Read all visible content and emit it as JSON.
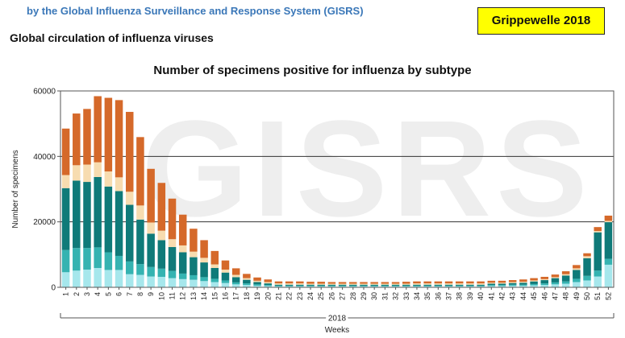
{
  "header": {
    "subtitle": "by the Global Influenza Surveillance and Response System (GISRS)",
    "badge": "Grippewelle 2018",
    "section_title": "Global circulation of influenza viruses",
    "watermark": "GISRS"
  },
  "colors": {
    "segments": [
      "#a6e7ec",
      "#35b3b1",
      "#0f7a79",
      "#f7dcb0",
      "#d5692a"
    ],
    "grid": "#333333",
    "plot_border": "#555555"
  },
  "chart_data": {
    "type": "bar",
    "stacked": true,
    "title": "Number of specimens positive for influenza by subtype",
    "xlabel": "Weeks",
    "year_label": "2018",
    "ylabel": "Number of specimens",
    "ylim": [
      0,
      60000
    ],
    "yticks": [
      0,
      20000,
      40000,
      60000
    ],
    "grid": true,
    "categories": [
      "1",
      "2",
      "3",
      "4",
      "5",
      "6",
      "7",
      "8",
      "9",
      "10",
      "11",
      "12",
      "13",
      "14",
      "15",
      "16",
      "17",
      "18",
      "19",
      "20",
      "21",
      "22",
      "23",
      "24",
      "25",
      "26",
      "27",
      "28",
      "29",
      "30",
      "31",
      "32",
      "33",
      "34",
      "35",
      "36",
      "37",
      "38",
      "39",
      "40",
      "41",
      "42",
      "43",
      "44",
      "45",
      "46",
      "47",
      "48",
      "49",
      "50",
      "51",
      "52"
    ],
    "series": [
      {
        "values": [
          4600,
          5100,
          5400,
          5900,
          5300,
          5300,
          4000,
          3800,
          3300,
          3200,
          2800,
          2500,
          2300,
          1900,
          1600,
          1300,
          900,
          700,
          500,
          400,
          300,
          300,
          300,
          300,
          300,
          300,
          300,
          300,
          300,
          300,
          300,
          300,
          300,
          300,
          300,
          300,
          300,
          300,
          300,
          300,
          400,
          400,
          500,
          500,
          600,
          700,
          900,
          1100,
          1600,
          2100,
          3300,
          6900
        ]
      },
      {
        "values": [
          6800,
          6900,
          6600,
          6300,
          5400,
          4300,
          3900,
          3300,
          2900,
          2500,
          2200,
          1700,
          1400,
          1200,
          1000,
          800,
          600,
          500,
          400,
          300,
          200,
          200,
          200,
          200,
          200,
          200,
          200,
          200,
          200,
          200,
          200,
          200,
          200,
          200,
          200,
          200,
          200,
          200,
          200,
          200,
          300,
          300,
          300,
          300,
          400,
          500,
          600,
          700,
          1000,
          1400,
          1800,
          1800
        ]
      },
      {
        "values": [
          18900,
          20600,
          20200,
          21500,
          20100,
          19800,
          17300,
          13600,
          10200,
          8700,
          7300,
          6500,
          5500,
          4500,
          3300,
          2400,
          1600,
          1100,
          700,
          500,
          300,
          300,
          300,
          300,
          300,
          300,
          300,
          300,
          300,
          300,
          300,
          300,
          300,
          300,
          300,
          300,
          300,
          300,
          300,
          300,
          400,
          400,
          500,
          600,
          800,
          1000,
          1300,
          1800,
          2700,
          5400,
          11700,
          11200
        ]
      },
      {
        "values": [
          4000,
          4700,
          5300,
          4500,
          4600,
          4200,
          4000,
          4300,
          3400,
          2900,
          2400,
          2100,
          1700,
          1400,
          1100,
          900,
          700,
          500,
          400,
          400,
          400,
          400,
          400,
          300,
          300,
          300,
          300,
          300,
          300,
          300,
          300,
          300,
          300,
          400,
          400,
          400,
          400,
          400,
          400,
          400,
          300,
          300,
          300,
          300,
          300,
          300,
          300,
          400,
          500,
          600,
          400,
          400
        ]
      },
      {
        "values": [
          14200,
          15800,
          17000,
          20200,
          22500,
          23600,
          24400,
          20900,
          16400,
          14600,
          12400,
          9400,
          7000,
          5400,
          4100,
          2800,
          2000,
          1300,
          1000,
          800,
          600,
          600,
          600,
          600,
          600,
          500,
          500,
          500,
          500,
          500,
          500,
          500,
          600,
          600,
          600,
          600,
          600,
          600,
          600,
          600,
          600,
          600,
          600,
          700,
          700,
          700,
          800,
          900,
          1000,
          900,
          1200,
          1600
        ]
      }
    ]
  }
}
